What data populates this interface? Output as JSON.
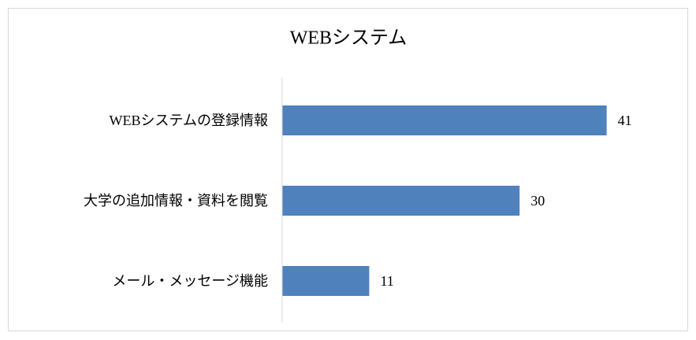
{
  "chart_data": {
    "type": "bar",
    "orientation": "horizontal",
    "title": "WEBシステム",
    "categories": [
      "WEBシステムの登録情報",
      "大学の追加情報・資料を閲覧",
      "メール・メッセージ機能"
    ],
    "values": [
      41,
      30,
      11
    ],
    "color": "#4f81bd",
    "xlim": [
      0,
      50
    ]
  }
}
